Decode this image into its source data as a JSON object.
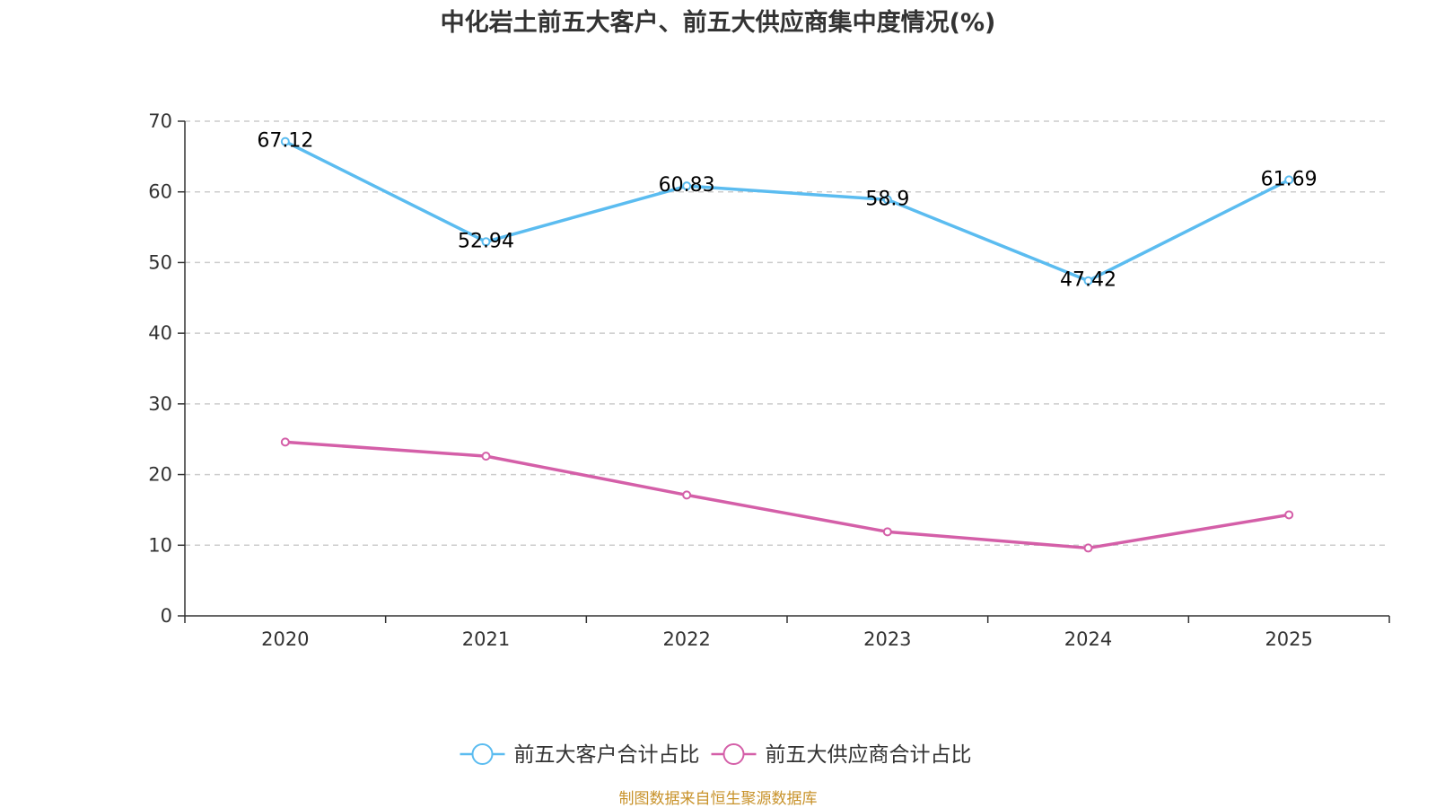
{
  "chart_data": {
    "type": "line",
    "title": "中化岩土前五大客户、前五大供应商集中度情况(%)",
    "categories": [
      "2020",
      "2021",
      "2022",
      "2023",
      "2024",
      "2025"
    ],
    "ylim": [
      0,
      70
    ],
    "yticks": [
      0,
      10,
      20,
      30,
      40,
      50,
      60,
      70
    ],
    "grid": true,
    "legend_position": "bottom-center",
    "series": [
      {
        "name": "前五大客户合计占比",
        "color": "#5bbcf0",
        "values": [
          67.12,
          52.94,
          60.83,
          58.9,
          47.42,
          61.69
        ],
        "labels": [
          "67.12",
          "52.94",
          "60.83",
          "58.9",
          "47.42",
          "61.69"
        ],
        "show_labels": true
      },
      {
        "name": "前五大供应商合计占比",
        "color": "#d45fa8",
        "values": [
          24.6,
          22.6,
          17.1,
          11.9,
          9.6,
          14.3
        ],
        "show_labels": false
      }
    ]
  },
  "source": "制图数据来自恒生聚源数据库"
}
